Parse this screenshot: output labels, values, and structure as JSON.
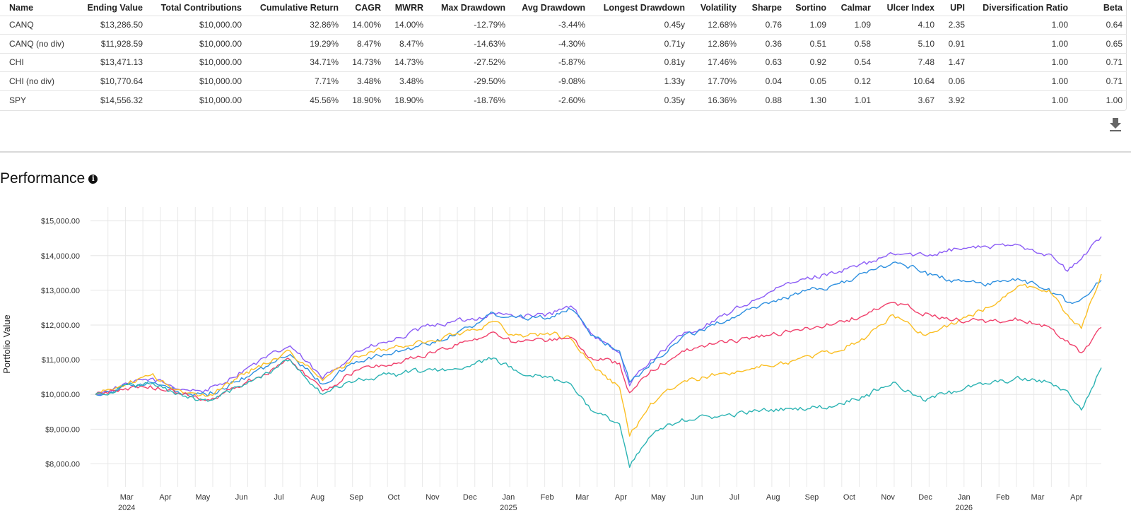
{
  "stats_table": {
    "columns": [
      "Name",
      "Ending Value",
      "Total Contributions",
      "Cumulative Return",
      "CAGR",
      "MWRR",
      "Max Drawdown",
      "Avg Drawdown",
      "Longest Drawdown",
      "Volatility",
      "Sharpe",
      "Sortino",
      "Calmar",
      "Ulcer Index",
      "UPI",
      "Diversification Ratio",
      "Beta"
    ],
    "rows": [
      [
        "CANQ",
        "$13,286.50",
        "$10,000.00",
        "32.86%",
        "14.00%",
        "14.00%",
        "-12.79%",
        "-3.44%",
        "0.45y",
        "12.68%",
        "0.76",
        "1.09",
        "1.09",
        "4.10",
        "2.35",
        "1.00",
        "0.64"
      ],
      [
        "CANQ (no div)",
        "$11,928.59",
        "$10,000.00",
        "19.29%",
        "8.47%",
        "8.47%",
        "-14.63%",
        "-4.30%",
        "0.71y",
        "12.86%",
        "0.36",
        "0.51",
        "0.58",
        "5.10",
        "0.91",
        "1.00",
        "0.65"
      ],
      [
        "CHI",
        "$13,471.13",
        "$10,000.00",
        "34.71%",
        "14.73%",
        "14.73%",
        "-27.52%",
        "-5.87%",
        "0.81y",
        "17.46%",
        "0.63",
        "0.92",
        "0.54",
        "7.48",
        "1.47",
        "1.00",
        "0.71"
      ],
      [
        "CHI (no div)",
        "$10,770.64",
        "$10,000.00",
        "7.71%",
        "3.48%",
        "3.48%",
        "-29.50%",
        "-9.08%",
        "1.33y",
        "17.70%",
        "0.04",
        "0.05",
        "0.12",
        "10.64",
        "0.06",
        "1.00",
        "0.71"
      ],
      [
        "SPY",
        "$14,556.32",
        "$10,000.00",
        "45.56%",
        "18.90%",
        "18.90%",
        "-18.76%",
        "-2.60%",
        "0.35y",
        "16.36%",
        "0.88",
        "1.30",
        "1.01",
        "3.67",
        "3.92",
        "1.00",
        "1.00"
      ]
    ]
  },
  "download_icon": "download-icon",
  "performance": {
    "title": "Performance",
    "info_icon": "info-icon",
    "info_glyph": "i"
  },
  "chart_data": {
    "type": "line",
    "title": "",
    "xlabel": "",
    "ylabel": "Portfolio Value",
    "ylim": [
      7500,
      15400
    ],
    "grid": true,
    "legend": "none",
    "y_ticks": [
      {
        "value": 8000,
        "label": "$8,000.00"
      },
      {
        "value": 9000,
        "label": "$9,000.00"
      },
      {
        "value": 10000,
        "label": "$10,000.00"
      },
      {
        "value": 11000,
        "label": "$11,000.00"
      },
      {
        "value": 12000,
        "label": "$12,000.00"
      },
      {
        "value": 13000,
        "label": "$13,000.00"
      },
      {
        "value": 14000,
        "label": "$14,000.00"
      },
      {
        "value": 15000,
        "label": "$15,000.00"
      }
    ],
    "x_range": [
      "2024-02-01",
      "2026-04-21"
    ],
    "x_ticks": [
      {
        "date": "2024-03-01",
        "label": "Mar",
        "year": "2024"
      },
      {
        "date": "2024-04-01",
        "label": "Apr",
        "year": ""
      },
      {
        "date": "2024-05-01",
        "label": "May",
        "year": ""
      },
      {
        "date": "2024-06-01",
        "label": "Jun",
        "year": ""
      },
      {
        "date": "2024-07-01",
        "label": "Jul",
        "year": ""
      },
      {
        "date": "2024-08-01",
        "label": "Aug",
        "year": ""
      },
      {
        "date": "2024-09-01",
        "label": "Sep",
        "year": ""
      },
      {
        "date": "2024-10-01",
        "label": "Oct",
        "year": ""
      },
      {
        "date": "2024-11-01",
        "label": "Nov",
        "year": ""
      },
      {
        "date": "2024-12-01",
        "label": "Dec",
        "year": ""
      },
      {
        "date": "2025-01-01",
        "label": "Jan",
        "year": "2025"
      },
      {
        "date": "2025-02-01",
        "label": "Feb",
        "year": ""
      },
      {
        "date": "2025-03-01",
        "label": "Mar",
        "year": ""
      },
      {
        "date": "2025-04-01",
        "label": "Apr",
        "year": ""
      },
      {
        "date": "2025-05-01",
        "label": "May",
        "year": ""
      },
      {
        "date": "2025-06-01",
        "label": "Jun",
        "year": ""
      },
      {
        "date": "2025-07-01",
        "label": "Jul",
        "year": ""
      },
      {
        "date": "2025-08-01",
        "label": "Aug",
        "year": ""
      },
      {
        "date": "2025-09-01",
        "label": "Sep",
        "year": ""
      },
      {
        "date": "2025-10-01",
        "label": "Oct",
        "year": ""
      },
      {
        "date": "2025-11-01",
        "label": "Nov",
        "year": ""
      },
      {
        "date": "2025-12-01",
        "label": "Dec",
        "year": ""
      },
      {
        "date": "2026-01-01",
        "label": "Jan",
        "year": "2026"
      },
      {
        "date": "2026-02-01",
        "label": "Feb",
        "year": ""
      },
      {
        "date": "2026-03-01",
        "label": "Mar",
        "year": ""
      },
      {
        "date": "2026-04-01",
        "label": "Apr",
        "year": ""
      }
    ],
    "series": [
      {
        "color": "#8b5cf6",
        "points": [
          [
            "2024-02-05",
            10000
          ],
          [
            "2024-02-25",
            10220
          ],
          [
            "2024-03-20",
            10450
          ],
          [
            "2024-04-15",
            10150
          ],
          [
            "2024-05-05",
            10100
          ],
          [
            "2024-06-05",
            10750
          ],
          [
            "2024-07-10",
            11400
          ],
          [
            "2024-08-05",
            10450
          ],
          [
            "2024-09-01",
            11250
          ],
          [
            "2024-10-01",
            11550
          ],
          [
            "2024-11-01",
            12000
          ],
          [
            "2024-12-01",
            12150
          ],
          [
            "2024-12-20",
            12350
          ],
          [
            "2025-01-05",
            12250
          ],
          [
            "2025-02-05",
            12300
          ],
          [
            "2025-02-20",
            12550
          ],
          [
            "2025-03-10",
            11700
          ],
          [
            "2025-03-31",
            11200
          ],
          [
            "2025-04-08",
            10250
          ],
          [
            "2025-04-25",
            11000
          ],
          [
            "2025-05-20",
            11700
          ],
          [
            "2025-06-15",
            12100
          ],
          [
            "2025-07-15",
            12700
          ],
          [
            "2025-08-15",
            13200
          ],
          [
            "2025-09-15",
            13500
          ],
          [
            "2025-10-15",
            13750
          ],
          [
            "2025-11-05",
            14050
          ],
          [
            "2025-12-01",
            14000
          ],
          [
            "2025-12-20",
            14200
          ],
          [
            "2026-01-20",
            14250
          ],
          [
            "2026-02-15",
            14300
          ],
          [
            "2026-03-10",
            14050
          ],
          [
            "2026-03-25",
            13550
          ],
          [
            "2026-04-05",
            13900
          ],
          [
            "2026-04-21",
            14550
          ]
        ]
      },
      {
        "color": "#2e90e0",
        "points": [
          [
            "2024-02-05",
            10000
          ],
          [
            "2024-02-25",
            10200
          ],
          [
            "2024-03-20",
            10350
          ],
          [
            "2024-04-15",
            10000
          ],
          [
            "2024-05-05",
            9950
          ],
          [
            "2024-06-05",
            10500
          ],
          [
            "2024-07-10",
            11150
          ],
          [
            "2024-08-05",
            10300
          ],
          [
            "2024-09-01",
            10950
          ],
          [
            "2024-10-01",
            11200
          ],
          [
            "2024-11-01",
            11500
          ],
          [
            "2024-12-01",
            11950
          ],
          [
            "2024-12-20",
            12350
          ],
          [
            "2025-01-05",
            12250
          ],
          [
            "2025-02-05",
            12250
          ],
          [
            "2025-02-20",
            12450
          ],
          [
            "2025-03-10",
            11700
          ],
          [
            "2025-03-31",
            11250
          ],
          [
            "2025-04-08",
            10350
          ],
          [
            "2025-04-25",
            10900
          ],
          [
            "2025-05-20",
            11650
          ],
          [
            "2025-06-15",
            12000
          ],
          [
            "2025-07-15",
            12500
          ],
          [
            "2025-08-15",
            12850
          ],
          [
            "2025-09-15",
            13100
          ],
          [
            "2025-10-15",
            13500
          ],
          [
            "2025-11-05",
            13800
          ],
          [
            "2025-12-01",
            13550
          ],
          [
            "2025-12-20",
            13300
          ],
          [
            "2026-01-20",
            13200
          ],
          [
            "2026-02-15",
            13300
          ],
          [
            "2026-03-10",
            13050
          ],
          [
            "2026-03-25",
            12650
          ],
          [
            "2026-04-05",
            12750
          ],
          [
            "2026-04-21",
            13290
          ]
        ]
      },
      {
        "color": "#fbbf24",
        "points": [
          [
            "2024-02-05",
            10000
          ],
          [
            "2024-02-25",
            10250
          ],
          [
            "2024-03-20",
            10550
          ],
          [
            "2024-04-15",
            10050
          ],
          [
            "2024-05-05",
            9950
          ],
          [
            "2024-06-05",
            10650
          ],
          [
            "2024-07-10",
            11250
          ],
          [
            "2024-08-05",
            10400
          ],
          [
            "2024-09-01",
            11100
          ],
          [
            "2024-10-01",
            11350
          ],
          [
            "2024-11-01",
            11550
          ],
          [
            "2024-12-01",
            11850
          ],
          [
            "2024-12-20",
            12100
          ],
          [
            "2025-01-05",
            11700
          ],
          [
            "2025-02-05",
            11750
          ],
          [
            "2025-02-20",
            11600
          ],
          [
            "2025-03-10",
            10800
          ],
          [
            "2025-03-31",
            10200
          ],
          [
            "2025-04-08",
            8800
          ],
          [
            "2025-04-25",
            9750
          ],
          [
            "2025-05-20",
            10350
          ],
          [
            "2025-06-15",
            10550
          ],
          [
            "2025-07-15",
            10750
          ],
          [
            "2025-08-15",
            10950
          ],
          [
            "2025-09-15",
            11200
          ],
          [
            "2025-10-15",
            11650
          ],
          [
            "2025-11-05",
            12300
          ],
          [
            "2025-12-01",
            11700
          ],
          [
            "2025-12-20",
            12000
          ],
          [
            "2026-01-20",
            12500
          ],
          [
            "2026-02-15",
            13150
          ],
          [
            "2026-03-10",
            13000
          ],
          [
            "2026-03-25",
            12300
          ],
          [
            "2026-04-05",
            11900
          ],
          [
            "2026-04-21",
            13470
          ]
        ]
      },
      {
        "color": "#f0416c",
        "points": [
          [
            "2024-02-05",
            10000
          ],
          [
            "2024-02-25",
            10150
          ],
          [
            "2024-03-20",
            10250
          ],
          [
            "2024-04-15",
            10000
          ],
          [
            "2024-05-05",
            9850
          ],
          [
            "2024-06-05",
            10350
          ],
          [
            "2024-07-10",
            11000
          ],
          [
            "2024-08-05",
            10100
          ],
          [
            "2024-09-01",
            10700
          ],
          [
            "2024-10-01",
            10900
          ],
          [
            "2024-11-01",
            11200
          ],
          [
            "2024-12-01",
            11550
          ],
          [
            "2024-12-20",
            11800
          ],
          [
            "2025-01-05",
            11500
          ],
          [
            "2025-02-05",
            11550
          ],
          [
            "2025-02-20",
            11650
          ],
          [
            "2025-03-10",
            11000
          ],
          [
            "2025-03-31",
            10900
          ],
          [
            "2025-04-08",
            10050
          ],
          [
            "2025-04-25",
            10700
          ],
          [
            "2025-05-20",
            11250
          ],
          [
            "2025-06-15",
            11450
          ],
          [
            "2025-07-15",
            11650
          ],
          [
            "2025-08-15",
            11800
          ],
          [
            "2025-09-15",
            12000
          ],
          [
            "2025-10-15",
            12300
          ],
          [
            "2025-11-05",
            12650
          ],
          [
            "2025-12-01",
            12350
          ],
          [
            "2025-12-20",
            12150
          ],
          [
            "2026-01-20",
            12100
          ],
          [
            "2026-02-15",
            12150
          ],
          [
            "2026-03-10",
            11950
          ],
          [
            "2026-03-25",
            11550
          ],
          [
            "2026-04-05",
            11200
          ],
          [
            "2026-04-21",
            11930
          ]
        ]
      },
      {
        "color": "#2bb3b3",
        "points": [
          [
            "2024-02-05",
            10000
          ],
          [
            "2024-02-25",
            10200
          ],
          [
            "2024-03-20",
            10300
          ],
          [
            "2024-04-15",
            9950
          ],
          [
            "2024-05-05",
            9800
          ],
          [
            "2024-06-05",
            10300
          ],
          [
            "2024-07-10",
            11000
          ],
          [
            "2024-08-05",
            10000
          ],
          [
            "2024-09-01",
            10400
          ],
          [
            "2024-10-01",
            10600
          ],
          [
            "2024-11-01",
            10700
          ],
          [
            "2024-12-01",
            10800
          ],
          [
            "2024-12-20",
            11050
          ],
          [
            "2025-01-05",
            10700
          ],
          [
            "2025-02-05",
            10500
          ],
          [
            "2025-02-20",
            10300
          ],
          [
            "2025-03-10",
            9500
          ],
          [
            "2025-03-31",
            9150
          ],
          [
            "2025-04-08",
            7900
          ],
          [
            "2025-04-25",
            8800
          ],
          [
            "2025-05-20",
            9300
          ],
          [
            "2025-06-15",
            9350
          ],
          [
            "2025-07-15",
            9500
          ],
          [
            "2025-08-15",
            9600
          ],
          [
            "2025-09-15",
            9650
          ],
          [
            "2025-10-15",
            10000
          ],
          [
            "2025-11-05",
            10350
          ],
          [
            "2025-12-01",
            9800
          ],
          [
            "2025-12-20",
            10100
          ],
          [
            "2026-01-20",
            10300
          ],
          [
            "2026-02-15",
            10450
          ],
          [
            "2026-03-10",
            10350
          ],
          [
            "2026-03-25",
            10100
          ],
          [
            "2026-04-05",
            9550
          ],
          [
            "2026-04-21",
            10770
          ]
        ]
      }
    ]
  }
}
